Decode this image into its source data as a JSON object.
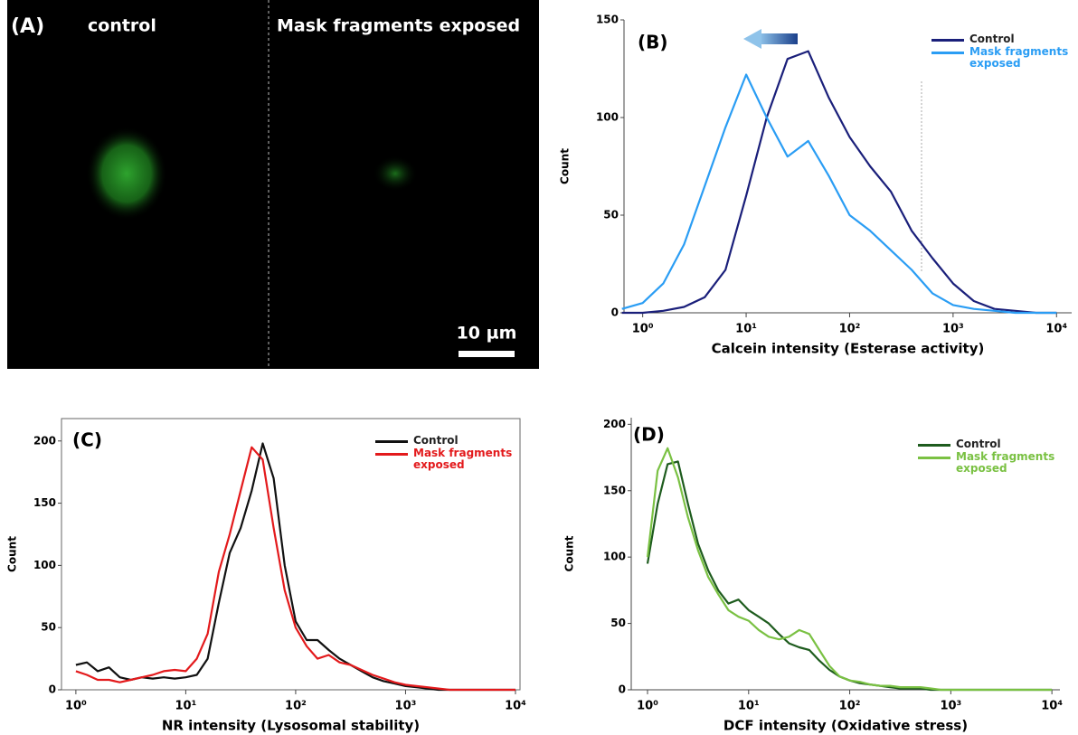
{
  "image_panel": {
    "label": "(A)",
    "left_title": "control",
    "right_title": "Mask fragments exposed",
    "scale_bar": "10 µm"
  },
  "chart_data": [
    {
      "type": "line",
      "panel_label": "(B)",
      "x_label": "Calcein intensity (Esterase activity)",
      "y_label": "Count",
      "x_scale": "log",
      "x": [
        0.63,
        1,
        1.58,
        2.51,
        3.98,
        6.31,
        10,
        15.8,
        25.1,
        39.8,
        63.1,
        100,
        158,
        251,
        398,
        631,
        1000,
        1585,
        2512,
        3981,
        6310,
        10000
      ],
      "series": [
        {
          "name": "Control",
          "color": "#1a1f7a",
          "values": [
            0,
            0,
            1,
            3,
            8,
            22,
            60,
            100,
            130,
            134,
            110,
            90,
            75,
            62,
            42,
            28,
            15,
            6,
            2,
            1,
            0,
            0
          ]
        },
        {
          "name": "Mask fragments exposed",
          "color": "#2a9df4",
          "values": [
            2,
            5,
            15,
            35,
            65,
            95,
            122,
            100,
            80,
            88,
            70,
            50,
            42,
            32,
            22,
            10,
            4,
            2,
            1,
            0,
            0,
            0
          ]
        }
      ],
      "xlim": [
        0.66,
        14000
      ],
      "ylim": [
        0,
        150
      ],
      "xticks": [
        {
          "value": 1,
          "label": "10⁰"
        },
        {
          "value": 10,
          "label": "10¹"
        },
        {
          "value": 100,
          "label": "10²"
        },
        {
          "value": 1000,
          "label": "10³"
        },
        {
          "value": 10000,
          "label": "10⁴"
        }
      ],
      "yticks": [
        0,
        50,
        100,
        150
      ]
    },
    {
      "type": "line",
      "panel_label": "(C)",
      "x_label": "NR intensity (Lysosomal stability)",
      "y_label": "Count",
      "x_scale": "log",
      "x": [
        1,
        1.26,
        1.58,
        2,
        2.51,
        3.16,
        3.98,
        5.01,
        6.31,
        7.94,
        10,
        12.6,
        15.8,
        20,
        25.1,
        31.6,
        39.8,
        50.1,
        63.1,
        79.4,
        100,
        126,
        158,
        200,
        251,
        316,
        398,
        501,
        631,
        794,
        1000,
        1259,
        1585,
        1995,
        2512,
        3162,
        3981,
        5012,
        6310,
        7943,
        10000
      ],
      "series": [
        {
          "name": "Control",
          "color": "#111111",
          "values": [
            20,
            22,
            15,
            18,
            10,
            8,
            10,
            9,
            10,
            9,
            10,
            12,
            25,
            70,
            110,
            130,
            160,
            198,
            170,
            100,
            55,
            40,
            40,
            32,
            25,
            20,
            15,
            10,
            7,
            5,
            3,
            2,
            1,
            0,
            0,
            0,
            0,
            0,
            0,
            0,
            0
          ]
        },
        {
          "name": "Mask fragments exposed",
          "color": "#e31a1c",
          "values": [
            15,
            12,
            8,
            8,
            6,
            8,
            10,
            12,
            15,
            16,
            15,
            25,
            45,
            95,
            125,
            160,
            195,
            185,
            130,
            80,
            50,
            35,
            25,
            28,
            22,
            20,
            16,
            12,
            9,
            6,
            4,
            3,
            2,
            1,
            0,
            0,
            0,
            0,
            0,
            0,
            0
          ]
        }
      ],
      "xlim": [
        0.74,
        11000
      ],
      "ylim": [
        0,
        218
      ],
      "xticks": [
        {
          "value": 1,
          "label": "10⁰"
        },
        {
          "value": 10,
          "label": "10¹"
        },
        {
          "value": 100,
          "label": "10²"
        },
        {
          "value": 1000,
          "label": "10³"
        },
        {
          "value": 10000,
          "label": "10⁴"
        }
      ],
      "yticks": [
        0,
        50,
        100,
        150,
        200
      ]
    },
    {
      "type": "line",
      "panel_label": "(D)",
      "x_label": "DCF intensity (Oxidative stress)",
      "y_label": "Count",
      "x_scale": "log",
      "x": [
        1,
        1.26,
        1.58,
        2,
        2.51,
        3.16,
        3.98,
        5.01,
        6.31,
        7.94,
        10,
        12.6,
        15.8,
        20,
        25.1,
        31.6,
        39.8,
        50.1,
        63.1,
        79.4,
        100,
        126,
        158,
        200,
        251,
        316,
        398,
        501,
        631,
        794,
        1000,
        1259,
        1585,
        1995,
        2512,
        3162,
        3981,
        5012,
        6310,
        7943,
        10000
      ],
      "series": [
        {
          "name": "Control",
          "color": "#1e5c1e",
          "values": [
            95,
            140,
            170,
            172,
            140,
            110,
            90,
            75,
            65,
            68,
            60,
            55,
            50,
            42,
            35,
            32,
            30,
            22,
            15,
            10,
            7,
            5,
            4,
            3,
            2,
            1,
            1,
            1,
            0,
            0,
            0,
            0,
            0,
            0,
            0,
            0,
            0,
            0,
            0,
            0,
            0
          ]
        },
        {
          "name": "Mask fragments exposed",
          "color": "#7ac143",
          "values": [
            100,
            165,
            182,
            160,
            130,
            105,
            85,
            72,
            60,
            55,
            52,
            45,
            40,
            38,
            40,
            45,
            42,
            30,
            18,
            10,
            7,
            6,
            4,
            3,
            3,
            2,
            2,
            2,
            1,
            0,
            0,
            0,
            0,
            0,
            0,
            0,
            0,
            0,
            0,
            0,
            0
          ]
        }
      ],
      "xlim": [
        0.69,
        12000
      ],
      "ylim": [
        0,
        205
      ],
      "xticks": [
        {
          "value": 1,
          "label": "10⁰"
        },
        {
          "value": 10,
          "label": "10¹"
        },
        {
          "value": 100,
          "label": "10²"
        },
        {
          "value": 1000,
          "label": "10³"
        },
        {
          "value": 10000,
          "label": "10⁴"
        }
      ],
      "yticks": [
        0,
        50,
        100,
        150,
        200
      ]
    }
  ]
}
